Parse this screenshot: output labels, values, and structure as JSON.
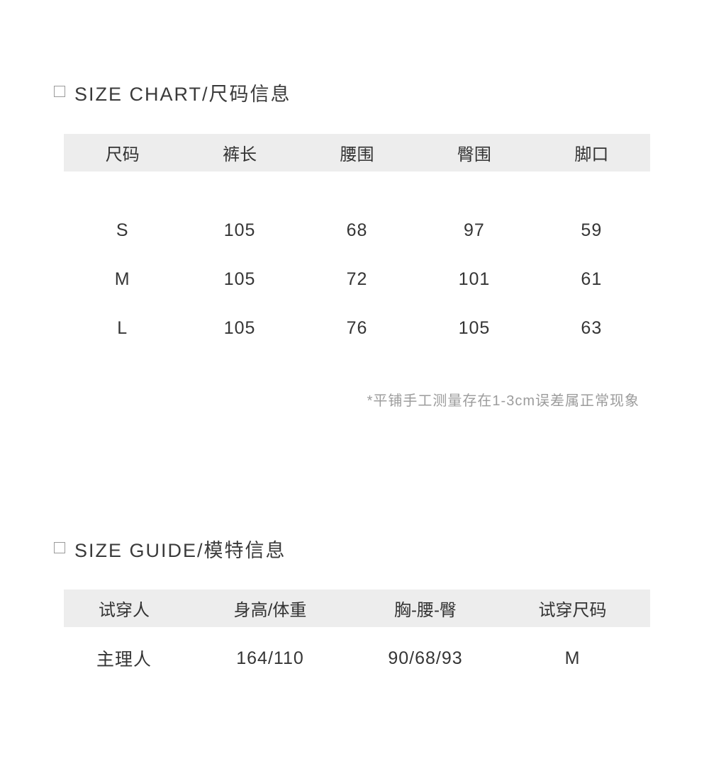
{
  "size_chart": {
    "title": "SIZE CHART/尺码信息",
    "table": {
      "headers": [
        "尺码",
        "裤长",
        "腰围",
        "臀围",
        "脚口"
      ],
      "rows": [
        [
          "S",
          "105",
          "68",
          "97",
          "59"
        ],
        [
          "M",
          "105",
          "72",
          "101",
          "61"
        ],
        [
          "L",
          "105",
          "76",
          "105",
          "63"
        ]
      ]
    },
    "note": "*平铺手工测量存在1-3cm误差属正常现象"
  },
  "size_guide": {
    "title": "SIZE GUIDE/模特信息",
    "table": {
      "headers": [
        "试穿人",
        "身高/体重",
        "胸-腰-臀",
        "试穿尺码"
      ],
      "rows": [
        [
          "主理人",
          "164/110",
          "90/68/93",
          "M"
        ]
      ]
    }
  },
  "colors": {
    "background": "#ffffff",
    "header_band": "#ededed",
    "text_primary": "#383838",
    "text_note": "#9c9c9c"
  }
}
